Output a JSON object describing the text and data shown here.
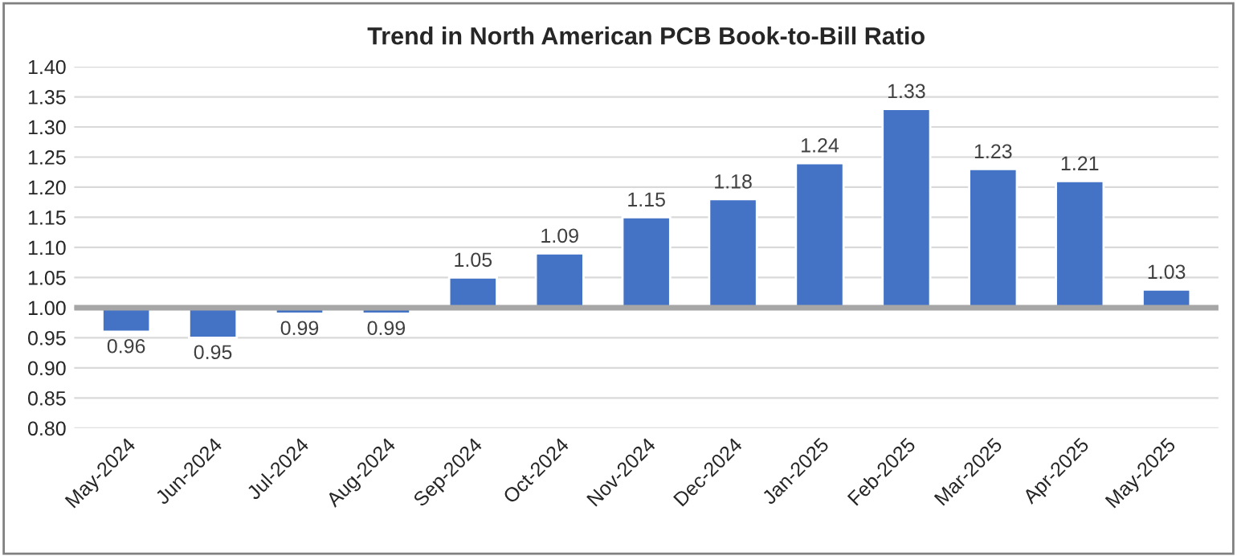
{
  "chart_data": {
    "type": "bar",
    "title": "Trend in North American PCB Book-to-Bill Ratio",
    "categories": [
      "May-2024",
      "Jun-2024",
      "Jul-2024",
      "Aug-2024",
      "Sep-2024",
      "Oct-2024",
      "Nov-2024",
      "Dec-2024",
      "Jan-2025",
      "Feb-2025",
      "Mar-2025",
      "Apr-2025",
      "May-2025"
    ],
    "base": [
      1.0,
      1.0,
      1.0,
      1.0,
      1.0,
      1.0,
      1.0,
      1.0,
      1.0,
      1.0,
      1.0,
      1.0,
      1.0
    ],
    "values": [
      -0.04,
      -0.05,
      -0.01,
      -0.01,
      0.05,
      0.09,
      0.15,
      0.18,
      0.24,
      0.33,
      0.23,
      0.21,
      0.03
    ],
    "value_labels": [
      "0.96",
      "0.95",
      "0.99",
      "0.99",
      "1.05",
      "1.09",
      "1.15",
      "1.18",
      "1.24",
      "1.33",
      "1.23",
      "1.21",
      "1.03"
    ],
    "color": "#4472c4",
    "ylim": [
      0.8,
      1.4
    ],
    "yticks": [
      {
        "value": 0.8,
        "label": "0.80"
      },
      {
        "value": 0.85,
        "label": "0.85"
      },
      {
        "value": 0.9,
        "label": "0.90"
      },
      {
        "value": 0.95,
        "label": "0.95"
      },
      {
        "value": 1.0,
        "label": "1.00"
      },
      {
        "value": 1.05,
        "label": "1.05"
      },
      {
        "value": 1.1,
        "label": "1.10"
      },
      {
        "value": 1.15,
        "label": "1.15"
      },
      {
        "value": 1.2,
        "label": "1.20"
      },
      {
        "value": 1.25,
        "label": "1.25"
      },
      {
        "value": 1.3,
        "label": "1.30"
      },
      {
        "value": 1.35,
        "label": "1.35"
      },
      {
        "value": 1.4,
        "label": "1.40"
      }
    ],
    "grid": "y",
    "ref_lines": [
      {
        "axis": "y",
        "value": 1.0,
        "color": "#a6a6a6"
      }
    ]
  }
}
